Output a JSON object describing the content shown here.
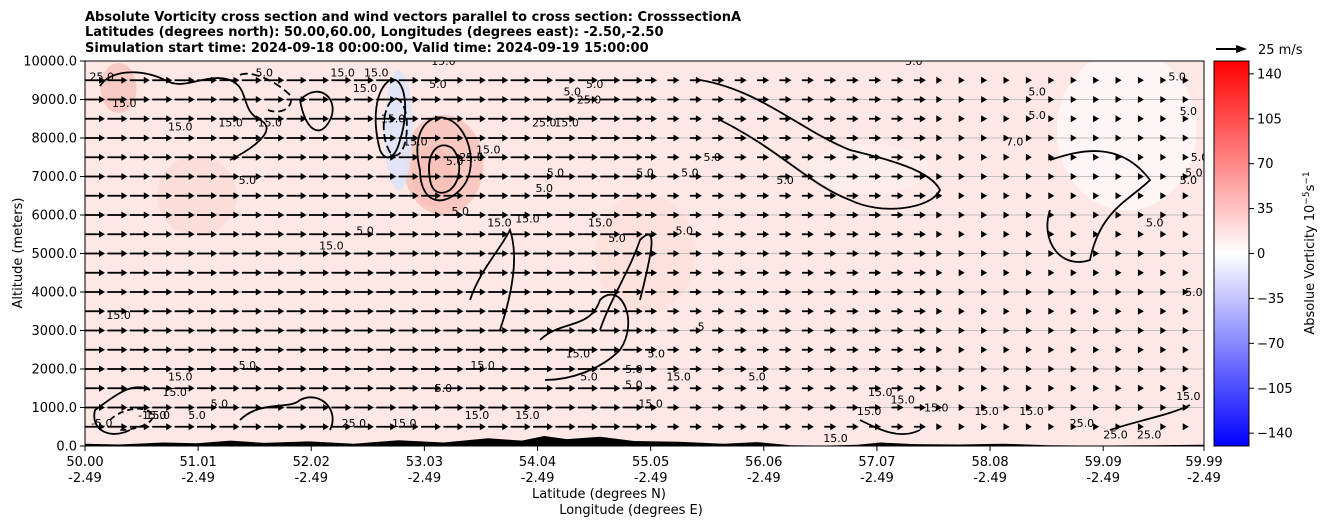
{
  "chart_data": {
    "type": "heatmap",
    "title_lines": [
      "Absolute Vorticity cross section and wind vectors parallel to cross section: CrosssectionA",
      "Latitudes (degrees north): 50.00,60.00, Longitudes (degrees east): -2.50,-2.50",
      "Simulation start time: 2024-09-18 00:00:00, Valid time: 2024-09-19 15:00:00"
    ],
    "ylabel": "Altitude (meters)",
    "xlabel_lat": "Latitude (degrees N)",
    "xlabel_lon": "Longitude (degrees E)",
    "xlim": [
      50.0,
      59.99
    ],
    "ylim": [
      0,
      10000
    ],
    "y_ticks": [
      {
        "value": 0,
        "label": "0.0"
      },
      {
        "value": 1000,
        "label": "1000.0"
      },
      {
        "value": 2000,
        "label": "2000.0"
      },
      {
        "value": 3000,
        "label": "3000.0"
      },
      {
        "value": 4000,
        "label": "4000.0"
      },
      {
        "value": 5000,
        "label": "5000.0"
      },
      {
        "value": 6000,
        "label": "6000.0"
      },
      {
        "value": 7000,
        "label": "7000.0"
      },
      {
        "value": 8000,
        "label": "8000.0"
      },
      {
        "value": 9000,
        "label": "9000.0"
      },
      {
        "value": 10000,
        "label": "10000.0"
      }
    ],
    "x_ticks": [
      {
        "value": 50.0,
        "lat": "50.00",
        "lon": "-2.49"
      },
      {
        "value": 51.01,
        "lat": "51.01",
        "lon": "-2.49"
      },
      {
        "value": 52.02,
        "lat": "52.02",
        "lon": "-2.49"
      },
      {
        "value": 53.03,
        "lat": "53.03",
        "lon": "-2.49"
      },
      {
        "value": 54.04,
        "lat": "54.04",
        "lon": "-2.49"
      },
      {
        "value": 55.05,
        "lat": "55.05",
        "lon": "-2.49"
      },
      {
        "value": 56.06,
        "lat": "56.06",
        "lon": "-2.49"
      },
      {
        "value": 57.07,
        "lat": "57.07",
        "lon": "-2.49"
      },
      {
        "value": 58.08,
        "lat": "58.08",
        "lon": "-2.49"
      },
      {
        "value": 59.09,
        "lat": "59.09",
        "lon": "-2.49"
      },
      {
        "value": 59.99,
        "lat": "59.99",
        "lon": "-2.49"
      }
    ],
    "grid": "horizontal",
    "colorbar": {
      "label": "Absolue Vorticity 10",
      "label_exp1": "−5",
      "label_mid": "s",
      "label_exp2": "−1",
      "range": [
        -150,
        150
      ],
      "ticks": [
        {
          "value": 140,
          "label": "140"
        },
        {
          "value": 105,
          "label": "105"
        },
        {
          "value": 70,
          "label": "70"
        },
        {
          "value": 35,
          "label": "35"
        },
        {
          "value": 0,
          "label": "0"
        },
        {
          "value": -35,
          "label": "−35"
        },
        {
          "value": -70,
          "label": "−70"
        },
        {
          "value": -105,
          "label": "−105"
        },
        {
          "value": -140,
          "label": "−140"
        }
      ],
      "colors": {
        "negative": "#0000ff",
        "zero": "#ffffff",
        "positive": "#ff0000"
      }
    },
    "quiver_key": {
      "label": "25 m/s"
    },
    "vector_field": {
      "x_start": 50.0,
      "x_step": 0.2,
      "count_x": 50,
      "y_start": 0,
      "y_step": 500,
      "count_y": 21,
      "typical_direction": "right"
    },
    "contour_labels": [
      {
        "x": 50.15,
        "y": 9500,
        "label": "25.0"
      },
      {
        "x": 50.35,
        "y": 8800,
        "label": "15.0"
      },
      {
        "x": 50.85,
        "y": 8200,
        "label": "15.0"
      },
      {
        "x": 51.3,
        "y": 8300,
        "label": "15.0"
      },
      {
        "x": 51.45,
        "y": 6800,
        "label": "5.0"
      },
      {
        "x": 51.65,
        "y": 8300,
        "label": "15.0"
      },
      {
        "x": 51.6,
        "y": 9600,
        "label": "5.0"
      },
      {
        "x": 52.3,
        "y": 9600,
        "label": "15.0"
      },
      {
        "x": 52.5,
        "y": 9200,
        "label": "15.0"
      },
      {
        "x": 52.6,
        "y": 9600,
        "label": "15.0"
      },
      {
        "x": 52.2,
        "y": 5100,
        "label": "15.0"
      },
      {
        "x": 52.5,
        "y": 5500,
        "label": "5.0"
      },
      {
        "x": 53.2,
        "y": 9900,
        "label": "15.0"
      },
      {
        "x": 53.15,
        "y": 9300,
        "label": "5.0"
      },
      {
        "x": 52.75,
        "y": 8400,
        "label": "15.0"
      },
      {
        "x": 52.95,
        "y": 7800,
        "label": "15.0"
      },
      {
        "x": 53.3,
        "y": 7300,
        "label": "5.0"
      },
      {
        "x": 53.45,
        "y": 7400,
        "label": "25.0"
      },
      {
        "x": 53.6,
        "y": 7600,
        "label": "15.0"
      },
      {
        "x": 53.35,
        "y": 6000,
        "label": "5.0"
      },
      {
        "x": 53.7,
        "y": 5700,
        "label": "15.0"
      },
      {
        "x": 53.95,
        "y": 5800,
        "label": "15.0"
      },
      {
        "x": 54.1,
        "y": 6600,
        "label": "5.0"
      },
      {
        "x": 54.1,
        "y": 8300,
        "label": "25.0"
      },
      {
        "x": 54.3,
        "y": 8300,
        "label": "15.0"
      },
      {
        "x": 54.2,
        "y": 7000,
        "label": "5.0"
      },
      {
        "x": 54.35,
        "y": 9100,
        "label": "5.0"
      },
      {
        "x": 54.55,
        "y": 9300,
        "label": "5.0"
      },
      {
        "x": 54.5,
        "y": 8900,
        "label": "25.0"
      },
      {
        "x": 54.6,
        "y": 5700,
        "label": "15.0"
      },
      {
        "x": 54.75,
        "y": 5300,
        "label": "5.0"
      },
      {
        "x": 55.0,
        "y": 7000,
        "label": "5.0"
      },
      {
        "x": 55.4,
        "y": 7000,
        "label": "5.0"
      },
      {
        "x": 55.6,
        "y": 7400,
        "label": "5.0"
      },
      {
        "x": 55.35,
        "y": 5500,
        "label": "5.0"
      },
      {
        "x": 55.7,
        "y": 10000,
        "label": "5.0"
      },
      {
        "x": 56.25,
        "y": 6800,
        "label": "5.0"
      },
      {
        "x": 57.4,
        "y": 9900,
        "label": "5.0"
      },
      {
        "x": 58.5,
        "y": 9100,
        "label": "5.0"
      },
      {
        "x": 58.5,
        "y": 8500,
        "label": "5.0"
      },
      {
        "x": 58.3,
        "y": 7800,
        "label": "7.0"
      },
      {
        "x": 59.75,
        "y": 9500,
        "label": "5.0"
      },
      {
        "x": 59.85,
        "y": 8600,
        "label": "5.0"
      },
      {
        "x": 59.95,
        "y": 7400,
        "label": "5.0"
      },
      {
        "x": 59.9,
        "y": 7000,
        "label": "5.0"
      },
      {
        "x": 59.85,
        "y": 6800,
        "label": "5.0"
      },
      {
        "x": 59.55,
        "y": 5700,
        "label": "5.0"
      },
      {
        "x": 59.9,
        "y": 3900,
        "label": "5.0"
      },
      {
        "x": 50.3,
        "y": 3300,
        "label": "15.0"
      },
      {
        "x": 51.45,
        "y": 2000,
        "label": "5.0"
      },
      {
        "x": 50.85,
        "y": 1700,
        "label": "15.0"
      },
      {
        "x": 50.8,
        "y": 1300,
        "label": "15.0"
      },
      {
        "x": 50.65,
        "y": 700,
        "label": "15.0"
      },
      {
        "x": 51.0,
        "y": 700,
        "label": "5.0"
      },
      {
        "x": 51.2,
        "y": 1000,
        "label": "5.0"
      },
      {
        "x": 53.2,
        "y": 1400,
        "label": "5.0"
      },
      {
        "x": 53.55,
        "y": 2000,
        "label": "15.0"
      },
      {
        "x": 53.5,
        "y": 700,
        "label": "15.0"
      },
      {
        "x": 53.95,
        "y": 700,
        "label": "15.0"
      },
      {
        "x": 54.4,
        "y": 2300,
        "label": "15.0"
      },
      {
        "x": 54.5,
        "y": 1700,
        "label": "5.0"
      },
      {
        "x": 54.9,
        "y": 1500,
        "label": "5.0"
      },
      {
        "x": 54.9,
        "y": 1900,
        "label": "5.0"
      },
      {
        "x": 55.1,
        "y": 2300,
        "label": "5.0"
      },
      {
        "x": 55.5,
        "y": 3000,
        "label": "5"
      },
      {
        "x": 55.3,
        "y": 1700,
        "label": "15.0"
      },
      {
        "x": 55.05,
        "y": 1000,
        "label": "15.0"
      },
      {
        "x": 56.0,
        "y": 1700,
        "label": "5.0"
      },
      {
        "x": 57.1,
        "y": 1300,
        "label": "15.0"
      },
      {
        "x": 57.3,
        "y": 1100,
        "label": "15.0"
      },
      {
        "x": 57.0,
        "y": 800,
        "label": "15.0"
      },
      {
        "x": 57.6,
        "y": 900,
        "label": "15.0"
      },
      {
        "x": 58.05,
        "y": 800,
        "label": "15.0"
      },
      {
        "x": 58.45,
        "y": 800,
        "label": "15.0"
      },
      {
        "x": 58.9,
        "y": 500,
        "label": "25.0"
      },
      {
        "x": 59.2,
        "y": 200,
        "label": "25.0"
      },
      {
        "x": 59.5,
        "y": 200,
        "label": "25.0"
      },
      {
        "x": 59.85,
        "y": 1200,
        "label": "15.0"
      },
      {
        "x": 50.6,
        "y": 700,
        "label": "-15.0"
      },
      {
        "x": 50.15,
        "y": 500,
        "label": "-5.0"
      },
      {
        "x": 52.4,
        "y": 500,
        "label": "25.0"
      },
      {
        "x": 52.85,
        "y": 500,
        "label": "15.0"
      },
      {
        "x": 56.7,
        "y": 100,
        "label": "15.0"
      }
    ]
  }
}
